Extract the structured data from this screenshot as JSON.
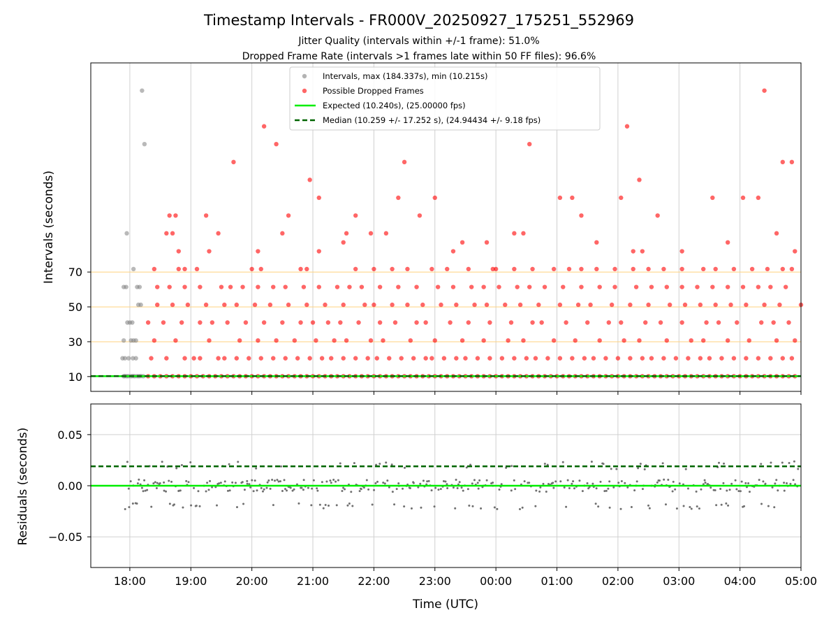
{
  "chart_data": {
    "type": "scatter",
    "title": "Timestamp Intervals - FR000V_20250927_175251_552969",
    "subtitle_lines": [
      "Jitter Quality (intervals within +/-1 frame): 51.0%",
      "Dropped Frame Rate (intervals >1 frames late within 50 FF files): 96.6%"
    ],
    "xlabel": "Time (UTC)",
    "x_ticks": [
      "18:00",
      "19:00",
      "20:00",
      "21:00",
      "22:00",
      "23:00",
      "00:00",
      "01:00",
      "02:00",
      "03:00",
      "04:00",
      "05:00"
    ],
    "x_range_hours": [
      17.36,
      29.0
    ],
    "top_panel": {
      "ylabel": "Intervals (seconds)",
      "y_ticks": [
        10,
        30,
        50,
        70
      ],
      "y_range": [
        1.5,
        190
      ],
      "reference_lines": [
        10,
        30,
        50,
        70
      ],
      "legend": [
        {
          "label": "Intervals, max (184.337s), min (10.215s)",
          "marker": "gray-dot"
        },
        {
          "label": "Possible Dropped Frames",
          "marker": "red-dot"
        },
        {
          "label": "Expected (10.240s), (25.00000 fps)",
          "marker": "green-line"
        },
        {
          "label": "Median (10.259 +/- 17.252 s), (24.94434 +/- 9.18 fps)",
          "marker": "darkgreen-dashed"
        }
      ],
      "series": [
        {
          "name": "Intervals (normal)",
          "color": "#808080",
          "points": [
            [
              17.9,
              10.2
            ],
            [
              17.92,
              10.3
            ],
            [
              17.95,
              10.2
            ],
            [
              17.98,
              10.25
            ],
            [
              18.02,
              10.2
            ],
            [
              18.05,
              10.3
            ],
            [
              18.08,
              10.2
            ],
            [
              18.12,
              10.25
            ],
            [
              18.15,
              10.2
            ],
            [
              18.18,
              10.3
            ],
            [
              18.22,
              10.2
            ],
            [
              17.88,
              20.5
            ],
            [
              17.92,
              20.5
            ],
            [
              17.98,
              20.5
            ],
            [
              18.05,
              20.5
            ],
            [
              18.1,
              20.5
            ],
            [
              17.9,
              30.7
            ],
            [
              18.02,
              30.7
            ],
            [
              18.06,
              30.7
            ],
            [
              18.1,
              30.7
            ],
            [
              17.96,
              41.0
            ],
            [
              18.0,
              41.0
            ],
            [
              18.04,
              41.0
            ],
            [
              18.14,
              51.2
            ],
            [
              18.18,
              51.2
            ],
            [
              17.9,
              61.4
            ],
            [
              17.94,
              61.4
            ],
            [
              18.12,
              61.4
            ],
            [
              18.16,
              61.4
            ],
            [
              18.06,
              71.7
            ],
            [
              17.95,
              92.2
            ],
            [
              18.2,
              174.1
            ],
            [
              18.24,
              143.4
            ]
          ]
        },
        {
          "name": "Possible Dropped Frames",
          "color": "#ff0000",
          "clusters": [
            {
              "y": 10.2,
              "x": [
                18.3,
                18.4,
                18.5,
                18.6,
                18.7,
                18.8,
                18.9,
                19.0,
                19.1,
                19.2,
                19.3,
                19.4,
                19.5,
                19.6,
                19.7,
                19.8,
                19.9,
                20.0,
                20.1,
                20.2,
                20.3,
                20.4,
                20.5,
                20.6,
                20.7,
                20.8,
                20.9,
                21.0,
                21.1,
                21.2,
                21.3,
                21.4,
                21.5,
                21.6,
                21.7,
                21.8,
                21.9,
                22.0,
                22.1,
                22.2,
                22.3,
                22.4,
                22.5,
                22.6,
                22.7,
                22.8,
                22.9,
                23.0,
                23.1,
                23.2,
                23.3,
                23.4,
                23.5,
                23.6,
                23.7,
                23.8,
                23.9,
                24.0,
                24.1,
                24.2,
                24.3,
                24.4,
                24.5,
                24.6,
                24.7,
                24.8,
                24.9,
                25.0,
                25.1,
                25.2,
                25.3,
                25.4,
                25.5,
                25.6,
                25.7,
                25.8,
                25.9,
                26.0,
                26.1,
                26.2,
                26.3,
                26.4,
                26.5,
                26.6,
                26.7,
                26.8,
                26.9,
                27.0,
                27.1,
                27.2,
                27.3,
                27.4,
                27.5,
                27.6,
                27.7,
                27.8,
                27.9,
                28.0,
                28.1,
                28.2,
                28.3,
                28.4,
                28.5,
                28.6,
                28.7,
                28.8,
                28.9
              ]
            },
            {
              "y": 20.5,
              "x": [
                18.35,
                18.6,
                18.9,
                19.05,
                19.15,
                19.45,
                19.55,
                19.75,
                19.95,
                20.15,
                20.35,
                20.55,
                20.75,
                20.95,
                21.15,
                21.3,
                21.5,
                21.7,
                21.9,
                22.05,
                22.25,
                22.45,
                22.65,
                22.85,
                22.95,
                23.15,
                23.35,
                23.5,
                23.7,
                23.9,
                24.1,
                24.3,
                24.5,
                24.65,
                24.85,
                25.05,
                25.25,
                25.45,
                25.6,
                25.8,
                26.0,
                26.2,
                26.4,
                26.55,
                26.75,
                26.95,
                27.15,
                27.35,
                27.5,
                27.7,
                27.9,
                28.1,
                28.3,
                28.5,
                28.7,
                28.85
              ]
            },
            {
              "y": 30.7,
              "x": [
                18.4,
                18.75,
                19.3,
                19.8,
                20.1,
                20.4,
                20.7,
                21.05,
                21.35,
                21.55,
                21.95,
                22.15,
                22.6,
                23.0,
                23.45,
                23.8,
                24.2,
                24.45,
                24.95,
                25.3,
                25.7,
                26.1,
                26.35,
                26.8,
                27.2,
                27.4,
                27.8,
                28.15,
                28.6,
                28.9
              ]
            },
            {
              "y": 41.0,
              "x": [
                18.3,
                18.55,
                18.85,
                19.15,
                19.35,
                19.6,
                19.9,
                20.2,
                20.5,
                20.8,
                21.0,
                21.25,
                21.45,
                21.75,
                22.1,
                22.35,
                22.7,
                22.85,
                23.25,
                23.55,
                23.9,
                24.25,
                24.6,
                24.75,
                25.15,
                25.5,
                25.85,
                26.05,
                26.45,
                26.7,
                27.05,
                27.45,
                27.65,
                27.95,
                28.35,
                28.55,
                28.8
              ]
            },
            {
              "y": 51.2,
              "x": [
                18.45,
                18.7,
                18.95,
                19.25,
                19.55,
                19.75,
                20.05,
                20.3,
                20.6,
                20.9,
                21.2,
                21.5,
                21.85,
                22.0,
                22.3,
                22.55,
                22.8,
                23.1,
                23.35,
                23.65,
                23.85,
                24.15,
                24.4,
                24.7,
                25.05,
                25.35,
                25.55,
                25.9,
                26.2,
                26.5,
                26.85,
                27.1,
                27.35,
                27.6,
                27.85,
                28.1,
                28.4,
                28.65,
                29.0
              ]
            },
            {
              "y": 61.4,
              "x": [
                18.45,
                18.65,
                18.9,
                19.15,
                19.5,
                19.65,
                19.85,
                20.1,
                20.35,
                20.55,
                20.85,
                21.1,
                21.4,
                21.6,
                21.8,
                22.1,
                22.4,
                22.7,
                23.05,
                23.3,
                23.6,
                23.8,
                24.05,
                24.35,
                24.55,
                24.8,
                25.1,
                25.4,
                25.7,
                25.95,
                26.3,
                26.55,
                26.8,
                27.05,
                27.3,
                27.55,
                27.8,
                28.05,
                28.3,
                28.5,
                28.75
              ]
            },
            {
              "y": 71.7,
              "x": [
                18.4,
                18.8,
                18.9,
                19.1,
                20.0,
                20.15,
                20.8,
                20.9,
                21.7,
                22.0,
                22.3,
                22.55,
                22.95,
                23.2,
                23.55,
                24.0,
                24.3,
                24.6,
                24.95,
                25.2,
                25.4,
                25.65,
                25.95,
                26.25,
                26.5,
                26.75,
                27.05,
                27.4,
                27.6,
                27.9,
                28.2,
                28.45,
                28.7,
                28.85
              ]
            }
          ],
          "outliers": [
            [
              18.6,
              92.2
            ],
            [
              18.65,
              102.4
            ],
            [
              18.7,
              92.2
            ],
            [
              18.75,
              102.4
            ],
            [
              18.8,
              81.9
            ],
            [
              19.25,
              102.4
            ],
            [
              19.3,
              81.9
            ],
            [
              19.45,
              92.2
            ],
            [
              19.7,
              133.1
            ],
            [
              20.1,
              81.9
            ],
            [
              20.2,
              153.6
            ],
            [
              20.4,
              143.4
            ],
            [
              20.5,
              92.2
            ],
            [
              20.6,
              102.4
            ],
            [
              20.95,
              122.9
            ],
            [
              21.1,
              112.6
            ],
            [
              21.1,
              81.9
            ],
            [
              21.5,
              87.0
            ],
            [
              21.55,
              92.2
            ],
            [
              21.7,
              102.4
            ],
            [
              21.95,
              92.2
            ],
            [
              22.2,
              92.2
            ],
            [
              22.4,
              112.6
            ],
            [
              22.5,
              133.1
            ],
            [
              22.75,
              102.4
            ],
            [
              23.0,
              112.6
            ],
            [
              23.3,
              81.9
            ],
            [
              23.45,
              87.0
            ],
            [
              23.85,
              87.0
            ],
            [
              23.95,
              71.7
            ],
            [
              24.3,
              92.2
            ],
            [
              24.45,
              92.2
            ],
            [
              24.55,
              143.4
            ],
            [
              25.05,
              112.6
            ],
            [
              25.25,
              112.6
            ],
            [
              25.4,
              102.4
            ],
            [
              25.65,
              87.0
            ],
            [
              26.05,
              112.6
            ],
            [
              26.15,
              153.6
            ],
            [
              26.35,
              122.9
            ],
            [
              26.25,
              81.9
            ],
            [
              26.4,
              81.9
            ],
            [
              26.65,
              102.4
            ],
            [
              27.05,
              81.9
            ],
            [
              27.55,
              112.6
            ],
            [
              27.8,
              87.0
            ],
            [
              28.05,
              112.6
            ],
            [
              28.3,
              112.6
            ],
            [
              28.4,
              174.1
            ],
            [
              28.6,
              92.2
            ],
            [
              28.7,
              133.1
            ],
            [
              28.85,
              133.1
            ],
            [
              28.9,
              81.9
            ]
          ]
        }
      ],
      "expected_line": {
        "y": 10.24,
        "color": "#00ee00"
      },
      "median_line": {
        "y": 10.259,
        "color": "#006400"
      }
    },
    "bottom_panel": {
      "ylabel": "Residuals (seconds)",
      "y_ticks": [
        "0.05",
        "0.00",
        "−0.05"
      ],
      "y_tick_values": [
        0.05,
        0.0,
        -0.05
      ],
      "y_range": [
        -0.08,
        0.08
      ],
      "expected_line": {
        "y": 0.0,
        "color": "#00ee00"
      },
      "median_line": {
        "y": 0.019,
        "color": "#006400"
      },
      "residual_bands": [
        {
          "center": 0.0,
          "spread": 0.006
        },
        {
          "center": 0.02,
          "spread": 0.004
        },
        {
          "center": -0.02,
          "spread": 0.003
        }
      ]
    }
  }
}
